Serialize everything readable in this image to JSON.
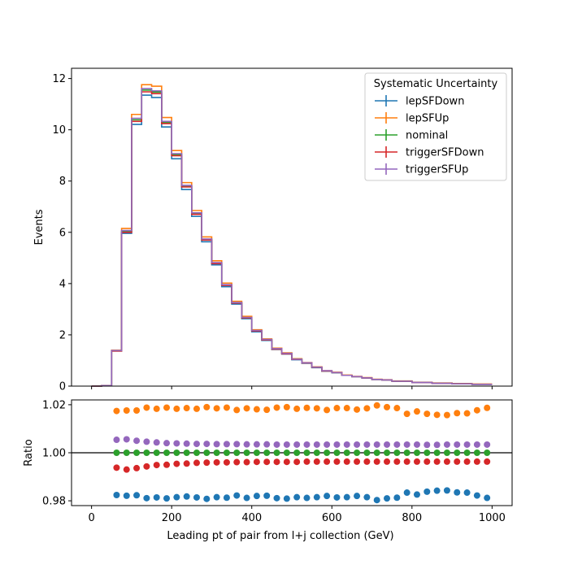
{
  "chart_data": [
    {
      "type": "line",
      "subtype": "step-histogram",
      "xlabel": "",
      "ylabel": "Events",
      "xlim": [
        -50,
        1050
      ],
      "ylim": [
        0,
        12.4
      ],
      "x_ticks": [
        0,
        200,
        400,
        600,
        800,
        1000
      ],
      "y_ticks": [
        0,
        2,
        4,
        6,
        8,
        10,
        12
      ],
      "y_tick_labels": [
        "0",
        "2",
        "4",
        "6",
        "8",
        "10",
        "12"
      ],
      "legend": {
        "title": "Systematic Uncertainty",
        "placement": "top-right",
        "entries": [
          "lepSFDown",
          "lepSFUp",
          "nominal",
          "triggerSFDown",
          "triggerSFUp"
        ]
      },
      "bin_edges": [
        0,
        25,
        50,
        75,
        100,
        125,
        150,
        175,
        200,
        225,
        250,
        275,
        300,
        325,
        350,
        375,
        400,
        425,
        450,
        475,
        500,
        525,
        550,
        575,
        600,
        625,
        650,
        675,
        700,
        725,
        750,
        800,
        850,
        900,
        950,
        1000
      ],
      "series": [
        {
          "name": "lepSFDown",
          "color": "#1f77b4",
          "values": [
            0.0,
            0.02,
            1.37,
            5.96,
            10.21,
            11.35,
            11.26,
            10.11,
            8.87,
            7.67,
            6.62,
            5.63,
            4.73,
            3.88,
            3.2,
            2.63,
            2.12,
            1.78,
            1.43,
            1.25,
            1.03,
            0.89,
            0.72,
            0.58,
            0.52,
            0.42,
            0.37,
            0.32,
            0.26,
            0.24,
            0.19,
            0.14,
            0.11,
            0.09,
            0.07
          ]
        },
        {
          "name": "lepSFUp",
          "color": "#ff7f0e",
          "values": [
            0.0,
            0.02,
            1.4,
            6.15,
            10.6,
            11.76,
            11.7,
            10.48,
            9.19,
            7.94,
            6.85,
            5.82,
            4.89,
            4.02,
            3.31,
            2.72,
            2.2,
            1.84,
            1.48,
            1.3,
            1.07,
            0.92,
            0.75,
            0.6,
            0.54,
            0.43,
            0.38,
            0.33,
            0.27,
            0.25,
            0.2,
            0.15,
            0.12,
            0.1,
            0.08
          ]
        },
        {
          "name": "nominal",
          "color": "#2ca02c",
          "values": [
            0.0,
            0.02,
            1.38,
            6.04,
            10.39,
            11.55,
            11.47,
            10.29,
            9.03,
            7.8,
            6.73,
            5.72,
            4.8,
            3.95,
            3.25,
            2.67,
            2.16,
            1.81,
            1.45,
            1.27,
            1.05,
            0.9,
            0.73,
            0.59,
            0.53,
            0.42,
            0.37,
            0.32,
            0.26,
            0.24,
            0.19,
            0.14,
            0.11,
            0.09,
            0.07
          ]
        },
        {
          "name": "triggerSFDown",
          "color": "#d62728",
          "values": [
            0.0,
            0.02,
            1.37,
            6.0,
            10.33,
            11.48,
            11.41,
            10.24,
            8.99,
            7.77,
            6.7,
            5.7,
            4.78,
            3.93,
            3.24,
            2.66,
            2.15,
            1.8,
            1.44,
            1.26,
            1.04,
            0.9,
            0.73,
            0.59,
            0.53,
            0.42,
            0.37,
            0.32,
            0.26,
            0.24,
            0.19,
            0.14,
            0.11,
            0.09,
            0.07
          ]
        },
        {
          "name": "triggerSFUp",
          "color": "#9467bd",
          "values": [
            0.0,
            0.02,
            1.39,
            6.07,
            10.45,
            11.61,
            11.52,
            10.33,
            9.07,
            7.83,
            6.76,
            5.74,
            4.82,
            3.96,
            3.26,
            2.68,
            2.17,
            1.82,
            1.46,
            1.28,
            1.05,
            0.91,
            0.74,
            0.6,
            0.53,
            0.42,
            0.37,
            0.32,
            0.26,
            0.24,
            0.19,
            0.14,
            0.11,
            0.09,
            0.07
          ]
        }
      ]
    },
    {
      "type": "scatter",
      "xlabel": "Leading pt of pair from l+j collection (GeV)",
      "ylabel": "Ratio",
      "xlim": [
        -50,
        1050
      ],
      "ylim": [
        0.978,
        1.022
      ],
      "x_ticks": [
        0,
        200,
        400,
        600,
        800,
        1000
      ],
      "x_tick_labels": [
        "0",
        "200",
        "400",
        "600",
        "800",
        "1000"
      ],
      "y_ticks": [
        0.98,
        1.0,
        1.02
      ],
      "y_tick_labels": [
        "0.98",
        "1.00",
        "1.02"
      ],
      "reference_line": 1.0,
      "x": [
        62.5,
        87.5,
        112.5,
        137.5,
        162.5,
        187.5,
        212.5,
        237.5,
        262.5,
        287.5,
        312.5,
        337.5,
        362.5,
        387.5,
        412.5,
        437.5,
        462.5,
        487.5,
        512.5,
        537.5,
        562.5,
        587.5,
        612.5,
        637.5,
        662.5,
        687.5,
        712.5,
        737.5,
        762.5,
        787.5,
        812.5,
        837.5,
        862.5,
        887.5,
        912.5,
        937.5,
        962.5,
        987.5
      ],
      "series": [
        {
          "name": "lepSFDown",
          "color": "#1f77b4",
          "values": [
            0.9824,
            0.9821,
            0.9823,
            0.9811,
            0.9814,
            0.981,
            0.9815,
            0.9818,
            0.9814,
            0.9808,
            0.9815,
            0.9813,
            0.9822,
            0.9812,
            0.982,
            0.9821,
            0.9811,
            0.9809,
            0.9815,
            0.9812,
            0.9815,
            0.982,
            0.9814,
            0.9815,
            0.982,
            0.9815,
            0.9803,
            0.981,
            0.9813,
            0.9834,
            0.9826,
            0.9838,
            0.9842,
            0.9843,
            0.9835,
            0.9834,
            0.9822,
            0.9812
          ]
        },
        {
          "name": "lepSFUp",
          "color": "#ff7f0e",
          "values": [
            1.0174,
            1.0176,
            1.0176,
            1.0188,
            1.0183,
            1.0188,
            1.0183,
            1.0186,
            1.0183,
            1.019,
            1.0185,
            1.0188,
            1.0178,
            1.0185,
            1.0181,
            1.0179,
            1.0188,
            1.019,
            1.0183,
            1.0187,
            1.0185,
            1.0178,
            1.0186,
            1.0186,
            1.018,
            1.0185,
            1.0197,
            1.019,
            1.0186,
            1.0162,
            1.0172,
            1.0162,
            1.0158,
            1.0157,
            1.0165,
            1.0164,
            1.0177,
            1.0187
          ]
        },
        {
          "name": "nominal",
          "color": "#2ca02c",
          "values": [
            1.0,
            1.0,
            1.0,
            1.0,
            1.0,
            1.0,
            1.0,
            1.0,
            1.0,
            1.0,
            1.0,
            1.0,
            1.0,
            1.0,
            1.0,
            1.0,
            1.0,
            1.0,
            1.0,
            1.0,
            1.0,
            1.0,
            1.0,
            1.0,
            1.0,
            1.0,
            1.0,
            1.0,
            1.0,
            1.0,
            1.0,
            1.0,
            1.0,
            1.0,
            1.0,
            1.0,
            1.0,
            1.0
          ]
        },
        {
          "name": "triggerSFDown",
          "color": "#d62728",
          "values": [
            0.9938,
            0.993,
            0.9936,
            0.9943,
            0.9949,
            0.995,
            0.9954,
            0.9955,
            0.9958,
            0.9959,
            0.996,
            0.996,
            0.9961,
            0.9961,
            0.9962,
            0.9962,
            0.9962,
            0.9962,
            0.9962,
            0.9963,
            0.9963,
            0.9963,
            0.9963,
            0.9963,
            0.9963,
            0.9963,
            0.9963,
            0.9963,
            0.9963,
            0.9963,
            0.9963,
            0.9963,
            0.9963,
            0.9963,
            0.9963,
            0.9963,
            0.9963,
            0.9963
          ]
        },
        {
          "name": "triggerSFUp",
          "color": "#9467bd",
          "values": [
            1.0054,
            1.0056,
            1.005,
            1.0046,
            1.0043,
            1.004,
            1.0039,
            1.0038,
            1.0037,
            1.0037,
            1.0036,
            1.0036,
            1.0036,
            1.0035,
            1.0035,
            1.0035,
            1.0034,
            1.0034,
            1.0034,
            1.0034,
            1.0034,
            1.0034,
            1.0034,
            1.0034,
            1.0034,
            1.0034,
            1.0034,
            1.0034,
            1.0034,
            1.0034,
            1.0034,
            1.0033,
            1.0033,
            1.0034,
            1.0034,
            1.0034,
            1.0034,
            1.0034
          ]
        }
      ]
    }
  ]
}
